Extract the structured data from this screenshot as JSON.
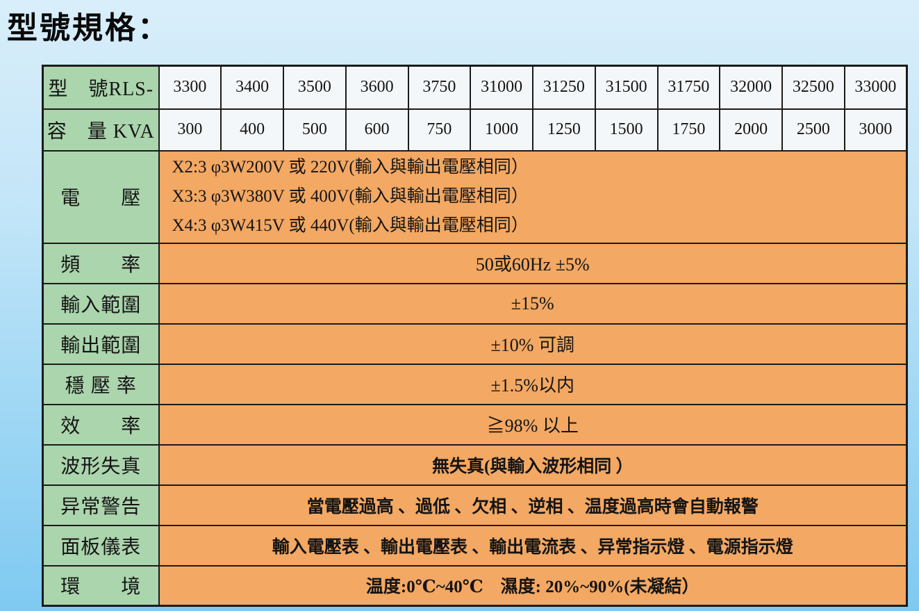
{
  "page": {
    "title": "型號規格："
  },
  "colors": {
    "header_green": "#abd5ad",
    "cell_white": "#f4f7f9",
    "cell_orange": "#f3a863",
    "border": "#1b1b1b",
    "bg_top": "#d9eefa",
    "bg_bottom": "#7fc9f1",
    "text": "#141414"
  },
  "table": {
    "model_row": {
      "label": "型　號RLS-",
      "values": [
        "3300",
        "3400",
        "3500",
        "3600",
        "3750",
        "31000",
        "31250",
        "31500",
        "31750",
        "32000",
        "32500",
        "33000"
      ]
    },
    "capacity_row": {
      "label": "容　量 KVA",
      "values": [
        "300",
        "400",
        "500",
        "600",
        "750",
        "1000",
        "1250",
        "1500",
        "1750",
        "2000",
        "2500",
        "3000"
      ]
    },
    "spec_rows": [
      {
        "name": "voltage",
        "label": "電　　壓",
        "lines": [
          "X2:3 φ3W200V 或 220V(輸入與輸出電壓相同）",
          "X3:3 φ3W380V 或 400V(輸入與輸出電壓相同）",
          "X4:3 φ3W415V 或 440V(輸入與輸出電壓相同）"
        ],
        "align": "left",
        "bold": false
      },
      {
        "name": "frequency",
        "label": "頻　　率",
        "value": "50或60Hz ±5%",
        "bold": false
      },
      {
        "name": "input-range",
        "label": "輸入範圍",
        "value": "±15%",
        "bold": false
      },
      {
        "name": "output-range",
        "label": "輸出範圍",
        "value": "±10% 可調",
        "bold": false
      },
      {
        "name": "regulation",
        "label": "穩 壓 率",
        "value": "±1.5%以内",
        "bold": false
      },
      {
        "name": "efficiency",
        "label": "效　　率",
        "value": "≧98% 以上",
        "bold": false
      },
      {
        "name": "distortion",
        "label": "波形失真",
        "value": "無失真(與輸入波形相同 ）",
        "bold": true
      },
      {
        "name": "alarm",
        "label": "异常警告",
        "value": "當電壓過高 、過低 、欠相 、逆相 、温度過高時會自動報警",
        "bold": true
      },
      {
        "name": "panel-meters",
        "label": "面板儀表",
        "value": "輸入電壓表 、輸出電壓表 、輸出電流表 、异常指示燈 、電源指示燈",
        "bold": true
      },
      {
        "name": "environment",
        "label": "環　　境",
        "value": "温度:0℃~40℃　濕度: 20%~90%(未凝結）",
        "bold": true
      }
    ]
  }
}
